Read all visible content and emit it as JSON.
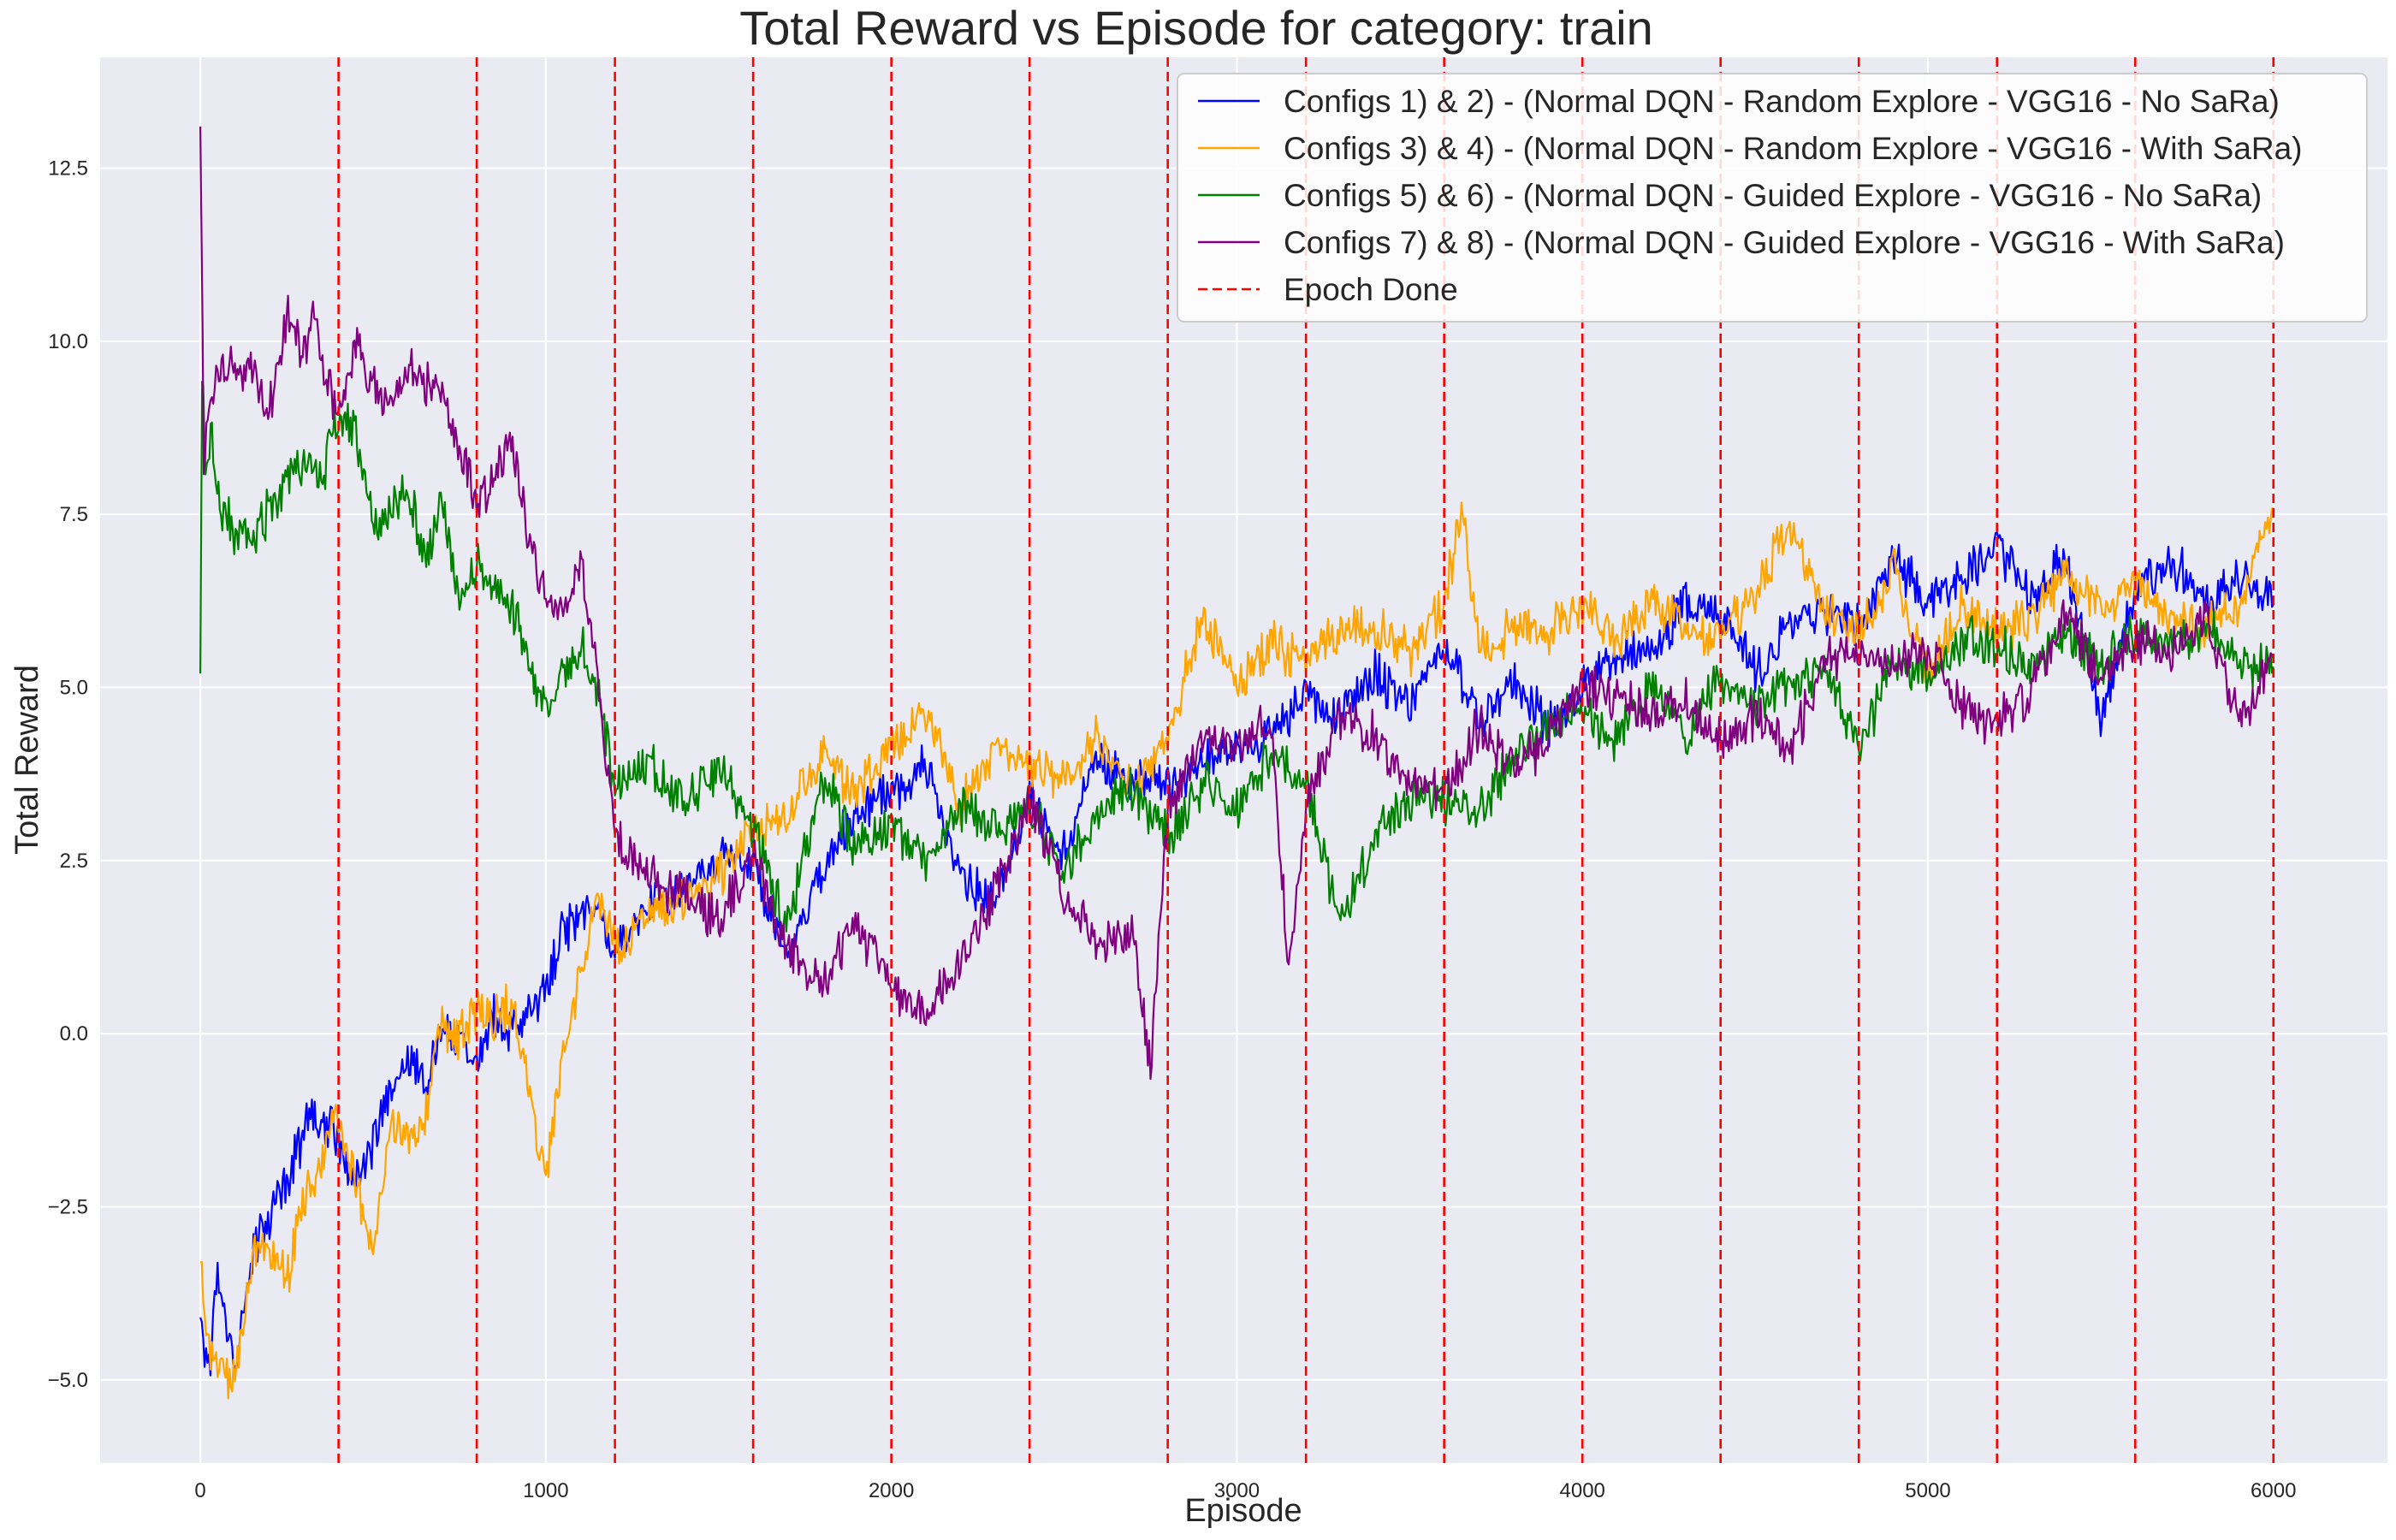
{
  "chart_data": {
    "type": "line",
    "title": "Total Reward vs Episode for category: train",
    "xlabel": "Episode",
    "ylabel": "Total Reward",
    "xlim": [
      -290,
      6330
    ],
    "ylim": [
      -6.2,
      14.1
    ],
    "xticks": [
      {
        "value": 0,
        "label": "0"
      },
      {
        "value": 1000,
        "label": "1000"
      },
      {
        "value": 2000,
        "label": "2000"
      },
      {
        "value": 3000,
        "label": "3000"
      },
      {
        "value": 4000,
        "label": "4000"
      },
      {
        "value": 5000,
        "label": "5000"
      },
      {
        "value": 6000,
        "label": "6000"
      }
    ],
    "yticks": [
      {
        "value": -5.0,
        "label": "−5.0"
      },
      {
        "value": -2.5,
        "label": "−2.5"
      },
      {
        "value": 0.0,
        "label": "0.0"
      },
      {
        "value": 2.5,
        "label": "2.5"
      },
      {
        "value": 5.0,
        "label": "5.0"
      },
      {
        "value": 7.5,
        "label": "7.5"
      },
      {
        "value": 10.0,
        "label": "10.0"
      },
      {
        "value": 12.5,
        "label": "12.5"
      }
    ],
    "grid": true,
    "legend_position": "top-right",
    "epoch_lines": {
      "label": "Epoch Done",
      "color": "#ff0000",
      "x": [
        400,
        800,
        1200,
        1600,
        2000,
        2400,
        2800,
        3200,
        3600,
        4000,
        4400,
        4800,
        5200,
        5600,
        6000
      ]
    },
    "series": [
      {
        "name": "Configs 1) & 2) - (Normal DQN - Random Explore - VGG16 - No SaRa)",
        "color": "#0000ff",
        "x": [
          0,
          25,
          50,
          100,
          150,
          200,
          250,
          300,
          350,
          400,
          450,
          500,
          550,
          600,
          650,
          700,
          750,
          800,
          850,
          900,
          950,
          1000,
          1050,
          1100,
          1150,
          1200,
          1300,
          1400,
          1500,
          1600,
          1700,
          1800,
          1900,
          2000,
          2100,
          2200,
          2300,
          2400,
          2500,
          2600,
          2700,
          2800,
          2900,
          3000,
          3100,
          3200,
          3300,
          3400,
          3500,
          3600,
          3700,
          3800,
          3900,
          4000,
          4100,
          4200,
          4300,
          4400,
          4500,
          4600,
          4700,
          4800,
          4900,
          5000,
          5100,
          5200,
          5300,
          5400,
          5500,
          5600,
          5700,
          5800,
          5900,
          6000
        ],
        "y": [
          -4.1,
          -4.9,
          -3.4,
          -4.8,
          -3.2,
          -2.6,
          -2.1,
          -1.4,
          -1.2,
          -1.5,
          -2.2,
          -1.6,
          -0.9,
          -0.3,
          -0.8,
          0.2,
          0.0,
          -0.5,
          0.3,
          0.0,
          0.3,
          0.6,
          1.5,
          1.7,
          1.8,
          1.2,
          1.9,
          2.1,
          2.6,
          2.5,
          1.1,
          2.3,
          3.2,
          3.5,
          3.9,
          2.2,
          1.9,
          3.4,
          2.6,
          4.0,
          3.7,
          3.6,
          3.9,
          4.1,
          4.3,
          4.9,
          4.6,
          5.2,
          4.7,
          5.6,
          4.6,
          5.1,
          4.4,
          5.0,
          5.5,
          5.6,
          6.2,
          6.1,
          5.2,
          5.9,
          6.1,
          5.9,
          6.8,
          6.3,
          6.6,
          7.0,
          6.3,
          6.9,
          4.5,
          6.4,
          6.9,
          6.2,
          6.6,
          6.2
        ]
      },
      {
        "name": "Configs 3) & 4) - (Normal DQN - Random Explore - VGG16 - With SaRa)",
        "color": "#ffa500",
        "x": [
          0,
          25,
          50,
          100,
          150,
          200,
          250,
          300,
          350,
          400,
          450,
          500,
          550,
          600,
          650,
          700,
          750,
          800,
          850,
          900,
          950,
          1000,
          1050,
          1100,
          1150,
          1200,
          1300,
          1400,
          1500,
          1600,
          1700,
          1800,
          1900,
          2000,
          2100,
          2200,
          2300,
          2400,
          2500,
          2600,
          2700,
          2800,
          2900,
          3000,
          3100,
          3200,
          3300,
          3400,
          3500,
          3600,
          3650,
          3700,
          3800,
          3900,
          4000,
          4100,
          4200,
          4300,
          4400,
          4500,
          4600,
          4700,
          4800,
          4900,
          5000,
          5100,
          5200,
          5300,
          5400,
          5500,
          5600,
          5700,
          5800,
          5900,
          6000
        ],
        "y": [
          -3.3,
          -4.6,
          -4.8,
          -5.0,
          -3.2,
          -3.0,
          -3.6,
          -2.4,
          -1.9,
          -1.2,
          -2.0,
          -3.2,
          -1.4,
          -1.5,
          -1.3,
          0.2,
          -0.1,
          0.3,
          0.2,
          0.4,
          -0.8,
          -2.0,
          -0.3,
          0.9,
          1.9,
          1.3,
          1.6,
          2.0,
          2.3,
          3.0,
          3.2,
          4.0,
          3.5,
          4.2,
          4.7,
          3.3,
          4.1,
          3.8,
          3.7,
          4.3,
          3.4,
          4.3,
          6.0,
          5.1,
          5.6,
          5.4,
          5.8,
          5.9,
          5.5,
          6.2,
          7.6,
          5.6,
          5.8,
          5.8,
          6.2,
          5.7,
          6.3,
          5.9,
          5.7,
          6.4,
          7.3,
          6.1,
          5.8,
          6.7,
          5.2,
          6.2,
          5.8,
          6.0,
          6.7,
          6.1,
          6.5,
          6.0,
          5.8,
          6.2,
          7.6
        ]
      },
      {
        "name": "Configs 5) & 6) - (Normal DQN - Guided Explore - VGG16 - No SaRa)",
        "color": "#008000",
        "x": [
          0,
          5,
          15,
          30,
          60,
          90,
          150,
          200,
          250,
          300,
          350,
          400,
          450,
          500,
          550,
          600,
          650,
          700,
          750,
          800,
          850,
          900,
          950,
          1000,
          1050,
          1100,
          1150,
          1200,
          1300,
          1400,
          1500,
          1600,
          1700,
          1800,
          1900,
          2000,
          2100,
          2200,
          2300,
          2400,
          2500,
          2600,
          2700,
          2800,
          2900,
          3000,
          3100,
          3200,
          3300,
          3400,
          3500,
          3600,
          3700,
          3800,
          3900,
          4000,
          4100,
          4200,
          4300,
          4400,
          4500,
          4600,
          4700,
          4800,
          4900,
          5000,
          5100,
          5200,
          5300,
          5400,
          5500,
          5600,
          5700,
          5800,
          5900,
          6000
        ],
        "y": [
          5.2,
          9.6,
          8.0,
          8.6,
          7.6,
          7.3,
          7.1,
          7.6,
          7.9,
          8.3,
          8.0,
          8.9,
          8.7,
          7.3,
          7.6,
          8.0,
          6.8,
          7.6,
          6.3,
          6.8,
          6.5,
          6.2,
          5.4,
          4.7,
          5.2,
          5.6,
          5.0,
          3.6,
          3.9,
          3.3,
          3.9,
          3.0,
          1.5,
          3.7,
          2.7,
          3.0,
          2.5,
          3.3,
          3.0,
          3.3,
          2.3,
          3.2,
          3.5,
          2.8,
          3.6,
          3.3,
          4.1,
          3.6,
          1.6,
          2.8,
          3.4,
          3.4,
          3.2,
          4.0,
          4.5,
          4.7,
          4.2,
          5.1,
          4.3,
          5.2,
          4.7,
          5.0,
          5.3,
          4.1,
          5.4,
          5.2,
          5.7,
          5.6,
          5.3,
          5.8,
          5.3,
          5.8,
          5.6,
          5.9,
          5.4,
          5.3
        ]
      },
      {
        "name": "Configs 7) & 8) - (Normal DQN - Guided Explore - VGG16 - With SaRa)",
        "color": "#800080",
        "x": [
          0,
          3,
          10,
          25,
          50,
          100,
          150,
          200,
          250,
          300,
          330,
          350,
          380,
          400,
          450,
          500,
          550,
          600,
          650,
          700,
          750,
          800,
          850,
          900,
          950,
          1000,
          1050,
          1100,
          1150,
          1200,
          1300,
          1400,
          1500,
          1600,
          1700,
          1800,
          1900,
          2000,
          2100,
          2200,
          2300,
          2400,
          2500,
          2600,
          2700,
          2750,
          2800,
          2900,
          3000,
          3100,
          3150,
          3200,
          3300,
          3400,
          3500,
          3600,
          3700,
          3800,
          3900,
          4000,
          4100,
          4200,
          4300,
          4400,
          4500,
          4600,
          4700,
          4800,
          4900,
          5000,
          5100,
          5200,
          5300,
          5400,
          5500,
          5600,
          5700,
          5800,
          5900,
          6000
        ],
        "y": [
          13.1,
          11.8,
          8.3,
          9.1,
          9.6,
          9.6,
          9.6,
          9.0,
          10.4,
          9.8,
          10.7,
          9.7,
          9.3,
          9.0,
          10.0,
          9.4,
          9.0,
          9.6,
          9.4,
          9.3,
          8.5,
          7.7,
          8.0,
          8.6,
          7.2,
          6.3,
          6.1,
          6.7,
          5.2,
          2.8,
          2.2,
          2.0,
          1.6,
          2.6,
          1.2,
          0.7,
          1.6,
          0.7,
          0.3,
          1.1,
          2.0,
          3.3,
          2.1,
          1.3,
          1.4,
          -0.5,
          3.2,
          4.3,
          4.1,
          4.5,
          0.8,
          3.3,
          4.6,
          4.3,
          3.6,
          3.5,
          4.4,
          3.8,
          4.3,
          5.1,
          4.8,
          4.6,
          4.8,
          4.2,
          4.6,
          4.0,
          5.4,
          5.4,
          5.4,
          5.6,
          4.7,
          4.5,
          5.0,
          6.1,
          5.1,
          5.7,
          5.5,
          6.0,
          4.5,
          5.4
        ]
      }
    ]
  }
}
